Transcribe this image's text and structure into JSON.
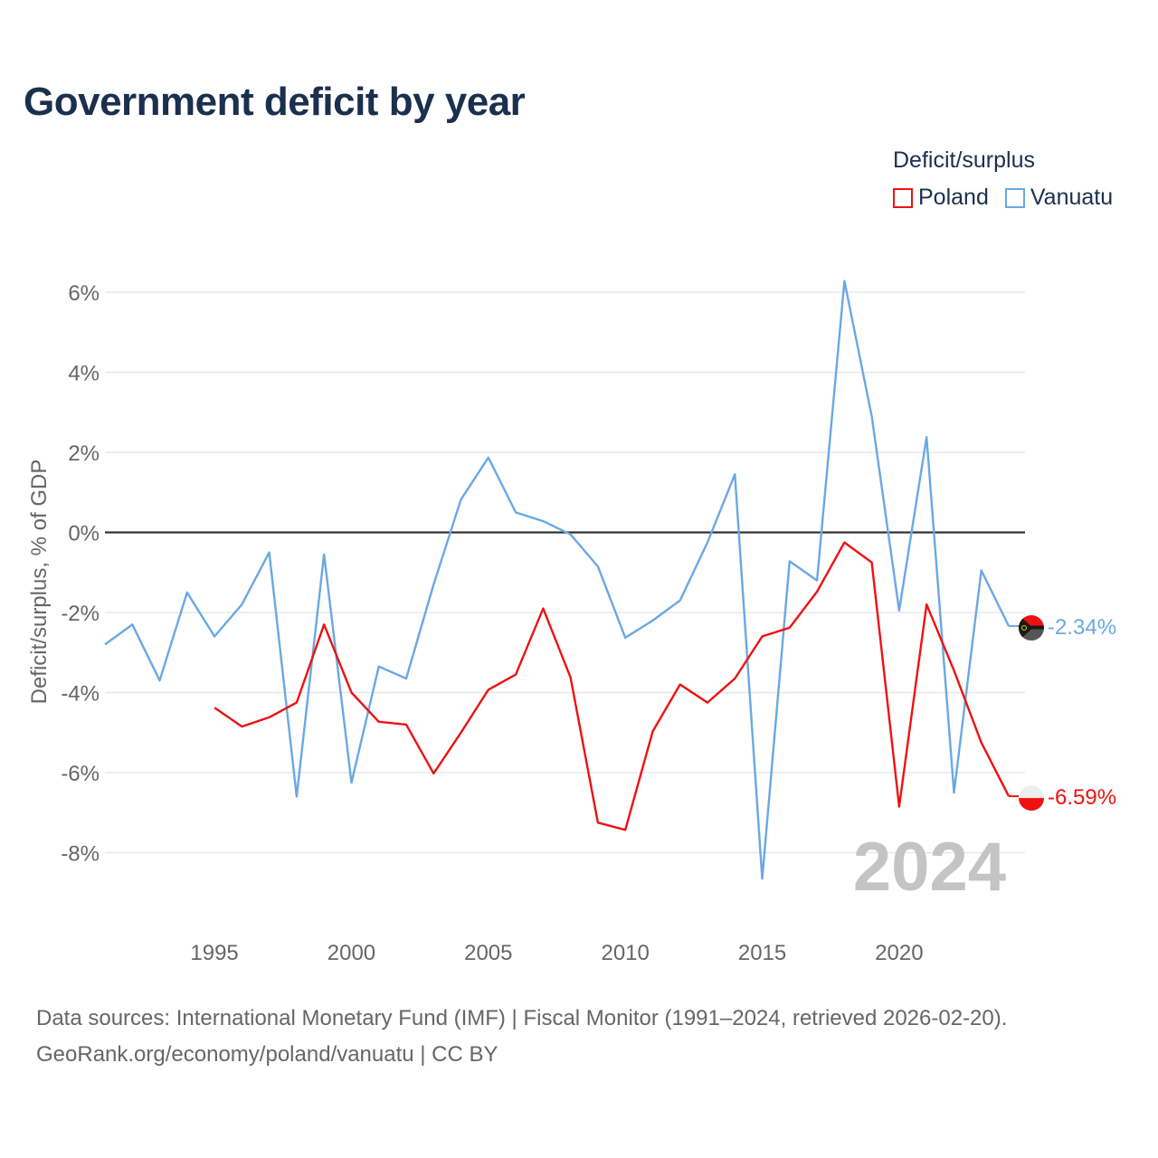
{
  "title": "Government deficit by year",
  "legend": {
    "title": "Deficit/surplus",
    "items": [
      {
        "label": "Poland",
        "color": "#ee1111"
      },
      {
        "label": "Vanuatu",
        "color": "#6aa8e4"
      }
    ]
  },
  "chart_data": {
    "type": "line",
    "title": "Government deficit by year",
    "xlabel": "",
    "ylabel": "Deficit/surplus, % of GDP",
    "xlim": [
      1991,
      2024
    ],
    "ylim": [
      -10,
      7
    ],
    "yticks": [
      6,
      4,
      2,
      0,
      -2,
      -4,
      -6,
      -8
    ],
    "ytick_labels": [
      "6%",
      "4%",
      "2%",
      "0%",
      "-2%",
      "-4%",
      "-6%",
      "-8%"
    ],
    "xticks": [
      1995,
      2000,
      2005,
      2010,
      2015,
      2020
    ],
    "xtick_labels": [
      "1995",
      "2000",
      "2005",
      "2010",
      "2015",
      "2020"
    ],
    "watermark_year": "2024",
    "series": [
      {
        "name": "Vanuatu",
        "color": "#6aa8e4",
        "end_label": "-2.34%",
        "x": [
          1991,
          1992,
          1993,
          1994,
          1995,
          1996,
          1997,
          1998,
          1999,
          2000,
          2001,
          2002,
          2003,
          2004,
          2005,
          2006,
          2007,
          2008,
          2009,
          2010,
          2011,
          2012,
          2013,
          2014,
          2015,
          2016,
          2017,
          2018,
          2019,
          2020,
          2021,
          2022,
          2023,
          2024
        ],
        "values": [
          -2.8,
          -2.3,
          -3.7,
          -1.5,
          -2.6,
          -1.8,
          -0.5,
          -6.6,
          -0.55,
          -6.25,
          -3.35,
          -3.65,
          -1.3,
          0.82,
          1.87,
          0.5,
          0.28,
          -0.05,
          -0.85,
          -2.63,
          -2.2,
          -1.7,
          -0.25,
          1.45,
          -8.65,
          -0.72,
          -1.2,
          6.28,
          2.9,
          -1.95,
          2.38,
          -6.5,
          -0.95,
          -2.34
        ]
      },
      {
        "name": "Poland",
        "color": "#ee1111",
        "end_label": "-6.59%",
        "x": [
          1995,
          1996,
          1997,
          1998,
          1999,
          2000,
          2001,
          2002,
          2003,
          2004,
          2005,
          2006,
          2007,
          2008,
          2009,
          2010,
          2011,
          2012,
          2013,
          2014,
          2015,
          2016,
          2017,
          2018,
          2019,
          2020,
          2021,
          2022,
          2023,
          2024
        ],
        "values": [
          -4.38,
          -4.85,
          -4.62,
          -4.25,
          -2.3,
          -4.0,
          -4.73,
          -4.8,
          -6.02,
          -5.0,
          -3.93,
          -3.55,
          -1.9,
          -3.62,
          -7.25,
          -7.43,
          -4.97,
          -3.8,
          -4.25,
          -3.65,
          -2.6,
          -2.38,
          -1.48,
          -0.25,
          -0.75,
          -6.85,
          -1.8,
          -3.45,
          -5.25,
          -6.59
        ]
      }
    ]
  },
  "sources": {
    "line1": "Data sources: International Monetary Fund (IMF) | Fiscal Monitor (1991–2024, retrieved 2026-02-20).",
    "line2": "GeoRank.org/economy/poland/vanuatu | CC BY"
  }
}
